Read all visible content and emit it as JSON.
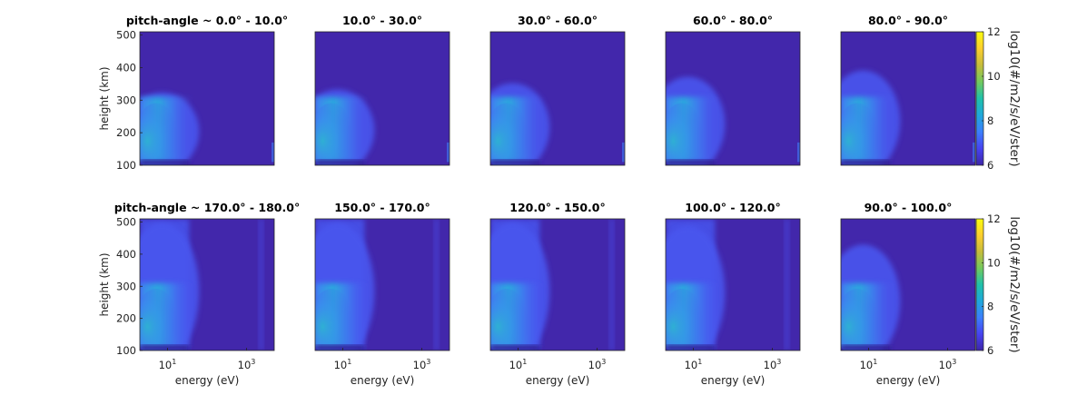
{
  "figure": {
    "colorbar": {
      "label": "log10(#/m2/s/eV/ster)",
      "ticks": [
        "6",
        "8",
        "10",
        "12"
      ],
      "range": [
        6,
        12
      ],
      "colormap": [
        "#3e26a8",
        "#4743f0",
        "#3c7ffc",
        "#1fa8db",
        "#1fc1aa",
        "#73c95e",
        "#c6bc3c",
        "#fcce2e",
        "#f9fb0e"
      ]
    },
    "background_color": "#4227ab"
  },
  "chart_data": [
    {
      "type": "heatmap",
      "title": "pitch-angle ~ 0.0° - 10.0°",
      "row": 0,
      "col": 0,
      "xlabel": "",
      "ylabel": "height (km)",
      "ylim": [
        100,
        510
      ],
      "y_ticks": [
        "100",
        "200",
        "300",
        "400",
        "500"
      ],
      "x_ticks": [],
      "xscale": "log",
      "colorbar_label": "",
      "plume_height_km": 330,
      "vertical_band": false
    },
    {
      "type": "heatmap",
      "title": "10.0° - 30.0°",
      "row": 0,
      "col": 1,
      "xlabel": "",
      "ylabel": "",
      "ylim": [
        100,
        510
      ],
      "y_ticks": [],
      "x_ticks": [],
      "xscale": "log",
      "plume_height_km": 340,
      "vertical_band": false
    },
    {
      "type": "heatmap",
      "title": "30.0° - 60.0°",
      "row": 0,
      "col": 2,
      "xlabel": "",
      "ylabel": "",
      "ylim": [
        100,
        510
      ],
      "y_ticks": [],
      "x_ticks": [],
      "xscale": "log",
      "plume_height_km": 360,
      "vertical_band": false
    },
    {
      "type": "heatmap",
      "title": "60.0° - 80.0°",
      "row": 0,
      "col": 3,
      "xlabel": "",
      "ylabel": "",
      "ylim": [
        100,
        510
      ],
      "y_ticks": [],
      "x_ticks": [],
      "xscale": "log",
      "plume_height_km": 380,
      "vertical_band": false
    },
    {
      "type": "heatmap",
      "title": "80.0° - 90.0°",
      "row": 0,
      "col": 4,
      "xlabel": "",
      "ylabel": "",
      "ylim": [
        100,
        510
      ],
      "y_ticks": [],
      "x_ticks": [],
      "xscale": "log",
      "plume_height_km": 400,
      "vertical_band": false
    },
    {
      "type": "heatmap",
      "title": "pitch-angle ~ 170.0° - 180.0°",
      "row": 1,
      "col": 0,
      "xlabel": "energy (eV)",
      "ylabel": "height (km)",
      "ylim": [
        100,
        510
      ],
      "y_ticks": [
        "100",
        "200",
        "300",
        "400",
        "500"
      ],
      "x_ticks": [
        "10^1",
        "10^3"
      ],
      "xscale": "log",
      "plume_height_km": 510,
      "vertical_band": true
    },
    {
      "type": "heatmap",
      "title": "150.0° - 170.0°",
      "row": 1,
      "col": 1,
      "xlabel": "energy (eV)",
      "ylabel": "",
      "ylim": [
        100,
        510
      ],
      "y_ticks": [],
      "x_ticks": [
        "10^1",
        "10^3"
      ],
      "xscale": "log",
      "plume_height_km": 510,
      "vertical_band": true
    },
    {
      "type": "heatmap",
      "title": "120.0° - 150.0°",
      "row": 1,
      "col": 2,
      "xlabel": "energy (eV)",
      "ylabel": "",
      "ylim": [
        100,
        510
      ],
      "y_ticks": [],
      "x_ticks": [
        "10^1",
        "10^3"
      ],
      "xscale": "log",
      "plume_height_km": 510,
      "vertical_band": true
    },
    {
      "type": "heatmap",
      "title": "100.0° - 120.0°",
      "row": 1,
      "col": 3,
      "xlabel": "energy (eV)",
      "ylabel": "",
      "ylim": [
        100,
        510
      ],
      "y_ticks": [],
      "x_ticks": [
        "10^1",
        "10^3"
      ],
      "xscale": "log",
      "plume_height_km": 500,
      "vertical_band": true
    },
    {
      "type": "heatmap",
      "title": "90.0° - 100.0°",
      "row": 1,
      "col": 4,
      "xlabel": "energy (eV)",
      "ylabel": "",
      "ylim": [
        100,
        510
      ],
      "y_ticks": [],
      "x_ticks": [
        "10^1",
        "10^3"
      ],
      "xscale": "log",
      "plume_height_km": 440,
      "vertical_band": false
    }
  ]
}
